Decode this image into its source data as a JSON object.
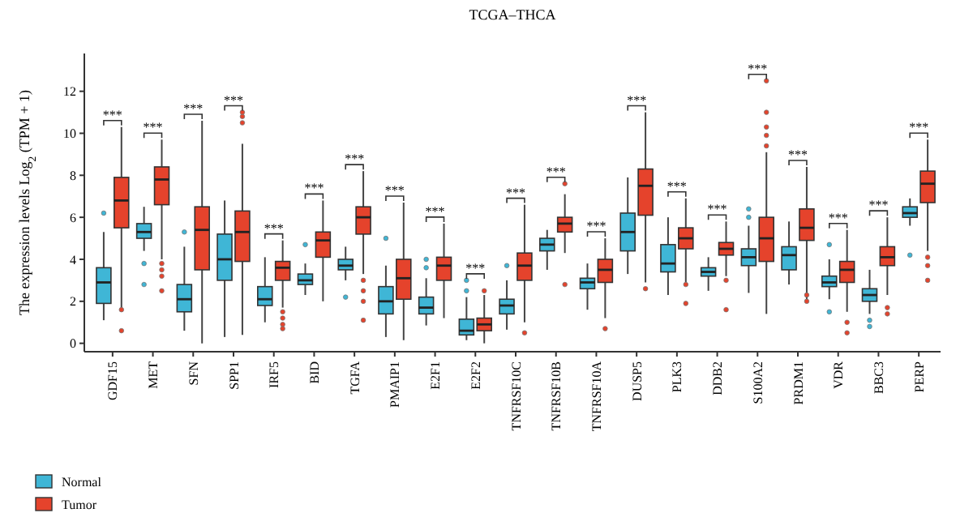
{
  "chart_data": {
    "type": "box",
    "title": "TCGA–THCA",
    "ylabel": "The expression levels Log$_{2}$ (TPM + 1)",
    "categories": [
      "GDF15",
      "MET",
      "SFN",
      "SPP1",
      "IRF5",
      "BID",
      "TGFA",
      "PMAIP1",
      "E2F1",
      "E2F2",
      "TNFRSF10C",
      "TNFRSF10B",
      "TNFRSF10A",
      "DUSP5",
      "PLK3",
      "DDB2",
      "S100A2",
      "PRDM1",
      "VDR",
      "BBC3",
      "PERP"
    ],
    "ylim": [
      -0.4,
      13.8
    ],
    "yticks": [
      0,
      2,
      4,
      6,
      8,
      10,
      12
    ],
    "legend": "bottom left",
    "series": [
      {
        "name": "Normal",
        "color": "#3fb6d6",
        "boxes": [
          {
            "low": 1.1,
            "q1": 1.9,
            "median": 2.9,
            "q3": 3.6,
            "high": 5.3,
            "outliers": [
              6.2
            ]
          },
          {
            "low": 4.4,
            "q1": 5.0,
            "median": 5.3,
            "q3": 5.7,
            "high": 6.5,
            "outliers": [
              3.8,
              2.8
            ]
          },
          {
            "low": 0.6,
            "q1": 1.5,
            "median": 2.1,
            "q3": 2.8,
            "high": 4.6,
            "outliers": [
              5.3
            ]
          },
          {
            "low": 0.3,
            "q1": 3.0,
            "median": 4.0,
            "q3": 5.2,
            "high": 6.8
          },
          {
            "low": 1.0,
            "q1": 1.8,
            "median": 2.1,
            "q3": 2.7,
            "high": 4.1
          },
          {
            "low": 2.3,
            "q1": 2.8,
            "median": 3.0,
            "q3": 3.3,
            "high": 3.8,
            "outliers": [
              4.7
            ]
          },
          {
            "low": 3.0,
            "q1": 3.5,
            "median": 3.7,
            "q3": 4.0,
            "high": 4.6,
            "outliers": [
              2.2
            ]
          },
          {
            "low": 0.3,
            "q1": 1.4,
            "median": 2.0,
            "q3": 2.7,
            "high": 3.7,
            "outliers": [
              5.0
            ]
          },
          {
            "low": 0.85,
            "q1": 1.4,
            "median": 1.7,
            "q3": 2.2,
            "high": 3.1,
            "outliers": [
              4.0,
              3.6
            ]
          },
          {
            "low": 0.15,
            "q1": 0.4,
            "median": 0.6,
            "q3": 1.15,
            "high": 2.2,
            "outliers": [
              3.0,
              2.5
            ]
          },
          {
            "low": 0.65,
            "q1": 1.4,
            "median": 1.8,
            "q3": 2.1,
            "high": 3.0,
            "outliers": [
              3.7
            ]
          },
          {
            "low": 3.5,
            "q1": 4.4,
            "median": 4.7,
            "q3": 5.0,
            "high": 5.4
          },
          {
            "low": 1.6,
            "q1": 2.6,
            "median": 2.9,
            "q3": 3.1,
            "high": 3.8
          },
          {
            "low": 3.3,
            "q1": 4.4,
            "median": 5.3,
            "q3": 6.2,
            "high": 7.9
          },
          {
            "low": 2.3,
            "q1": 3.4,
            "median": 3.8,
            "q3": 4.7,
            "high": 6.0
          },
          {
            "low": 2.5,
            "q1": 3.2,
            "median": 3.4,
            "q3": 3.6,
            "high": 4.1
          },
          {
            "low": 2.4,
            "q1": 3.7,
            "median": 4.1,
            "q3": 4.5,
            "high": 5.6,
            "outliers": [
              6.4,
              6.0
            ]
          },
          {
            "low": 2.8,
            "q1": 3.5,
            "median": 4.2,
            "q3": 4.6,
            "high": 5.8
          },
          {
            "low": 2.1,
            "q1": 2.7,
            "median": 2.9,
            "q3": 3.2,
            "high": 4.0,
            "outliers": [
              4.7,
              1.5
            ]
          },
          {
            "low": 1.4,
            "q1": 2.0,
            "median": 2.3,
            "q3": 2.6,
            "high": 3.5,
            "outliers": [
              1.1,
              0.8
            ]
          },
          {
            "low": 5.6,
            "q1": 6.0,
            "median": 6.2,
            "q3": 6.5,
            "high": 6.9,
            "outliers": [
              4.2
            ]
          }
        ]
      },
      {
        "name": "Tumor",
        "color": "#e5432c",
        "boxes": [
          {
            "low": 1.5,
            "q1": 5.5,
            "median": 6.8,
            "q3": 7.9,
            "high": 10.3,
            "outliers": [
              1.6,
              0.6
            ]
          },
          {
            "low": 4.0,
            "q1": 6.6,
            "median": 7.8,
            "q3": 8.4,
            "high": 9.7,
            "outliers": [
              3.8,
              3.5,
              3.2,
              2.5
            ]
          },
          {
            "low": 0,
            "q1": 3.5,
            "median": 5.4,
            "q3": 6.5,
            "high": 10.6
          },
          {
            "low": 0.4,
            "q1": 3.9,
            "median": 5.3,
            "q3": 6.3,
            "high": 9.5,
            "outliers": [
              10.5,
              10.8,
              11.0
            ]
          },
          {
            "low": 1.7,
            "q1": 3.0,
            "median": 3.6,
            "q3": 3.9,
            "high": 4.9,
            "outliers": [
              1.5,
              1.2,
              0.9,
              0.7
            ]
          },
          {
            "low": 2.0,
            "q1": 4.1,
            "median": 4.9,
            "q3": 5.3,
            "high": 6.8
          },
          {
            "low": 3.3,
            "q1": 5.2,
            "median": 6.0,
            "q3": 6.5,
            "high": 8.2,
            "outliers": [
              3.0,
              2.5,
              2.0,
              1.1
            ]
          },
          {
            "low": 0.15,
            "q1": 2.1,
            "median": 3.1,
            "q3": 4.0,
            "high": 6.7
          },
          {
            "low": 1.2,
            "q1": 3.0,
            "median": 3.7,
            "q3": 4.1,
            "high": 5.7
          },
          {
            "low": 0,
            "q1": 0.6,
            "median": 0.9,
            "q3": 1.2,
            "high": 2.3,
            "outliers": [
              2.5
            ]
          },
          {
            "low": 1.0,
            "q1": 3.0,
            "median": 3.7,
            "q3": 4.3,
            "high": 6.6,
            "outliers": [
              0.5
            ]
          },
          {
            "low": 4.3,
            "q1": 5.3,
            "median": 5.7,
            "q3": 6.0,
            "high": 7.1,
            "outliers": [
              7.6,
              2.8
            ]
          },
          {
            "low": 1.2,
            "q1": 2.9,
            "median": 3.5,
            "q3": 4.0,
            "high": 5.0,
            "outliers": [
              0.7
            ]
          },
          {
            "low": 2.9,
            "q1": 6.1,
            "median": 7.5,
            "q3": 8.3,
            "high": 11.0,
            "outliers": [
              2.6
            ]
          },
          {
            "low": 2.9,
            "q1": 4.5,
            "median": 5.0,
            "q3": 5.5,
            "high": 6.9,
            "outliers": [
              2.8,
              1.9
            ]
          },
          {
            "low": 3.2,
            "q1": 4.2,
            "median": 4.5,
            "q3": 4.8,
            "high": 5.8,
            "outliers": [
              3.0,
              1.6
            ]
          },
          {
            "low": 1.4,
            "q1": 3.9,
            "median": 5.0,
            "q3": 6.0,
            "high": 9.1,
            "outliers": [
              9.4,
              9.9,
              10.3,
              11.0,
              12.5
            ]
          },
          {
            "low": 2.1,
            "q1": 4.9,
            "median": 5.5,
            "q3": 6.4,
            "high": 8.4,
            "outliers": [
              2.3,
              2.0
            ]
          },
          {
            "low": 1.5,
            "q1": 2.9,
            "median": 3.5,
            "q3": 3.9,
            "high": 5.4,
            "outliers": [
              1.0,
              0.5
            ]
          },
          {
            "low": 2.3,
            "q1": 3.7,
            "median": 4.1,
            "q3": 4.6,
            "high": 6.0,
            "outliers": [
              1.7,
              1.4
            ]
          },
          {
            "low": 4.4,
            "q1": 6.7,
            "median": 7.6,
            "q3": 8.2,
            "high": 9.7,
            "outliers": [
              4.1,
              3.7,
              3.0
            ]
          }
        ]
      }
    ],
    "annotations": [
      "***",
      "***",
      "***",
      "***",
      "***",
      "***",
      "***",
      "***",
      "***",
      "***",
      "***",
      "***",
      "***",
      "***",
      "***",
      "***",
      "***",
      "***",
      "***",
      "***",
      "***"
    ]
  }
}
